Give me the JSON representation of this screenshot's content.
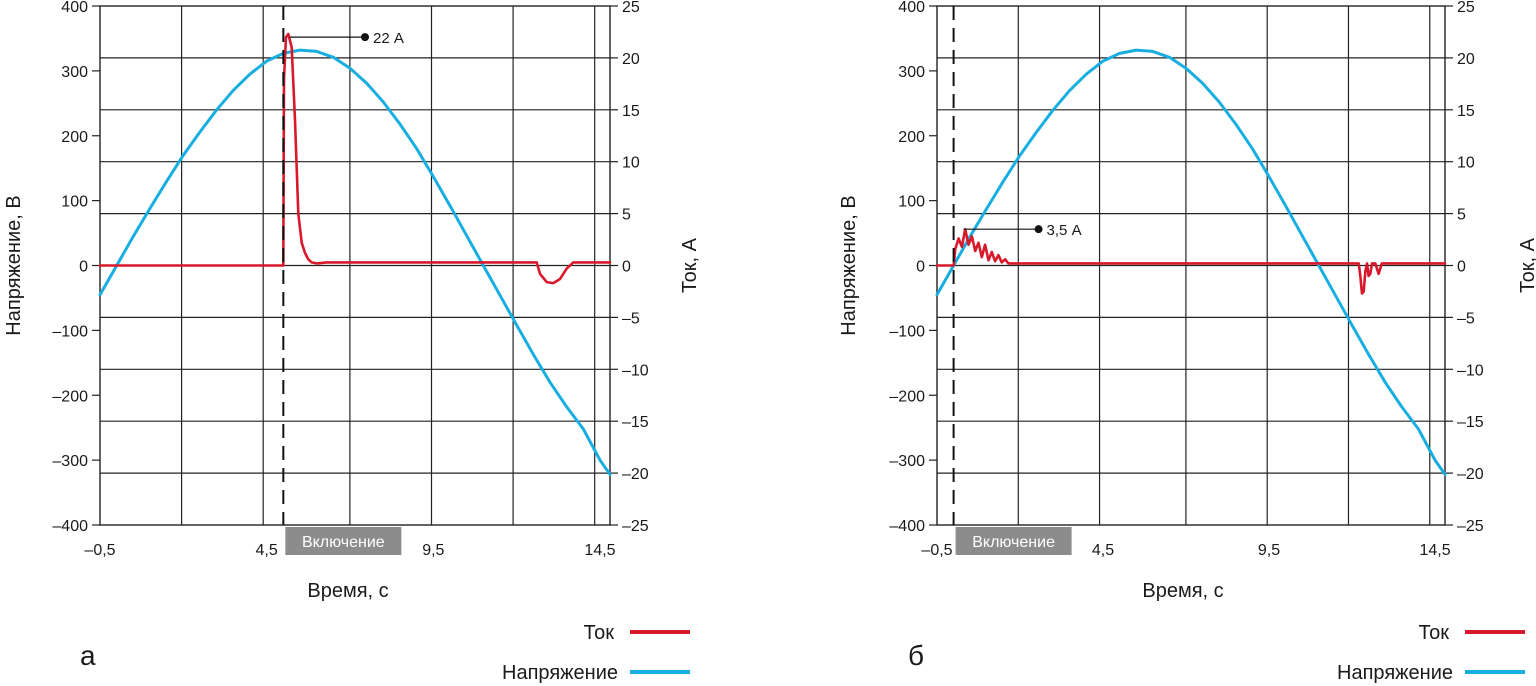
{
  "colors": {
    "current": "#d7192b",
    "voltage": "#19aee0",
    "grid": "#222222",
    "on_box": "#8c8c8c"
  },
  "chart_data": [
    {
      "type": "line",
      "panel_label": "а",
      "xlabel": "Время, с",
      "ylabel_left": "Напряжение, В",
      "ylabel_right": "Ток, А",
      "xlim": [
        -0.5,
        14.8
      ],
      "ylim_left": [
        -400,
        400
      ],
      "ylim_right": [
        -25,
        25
      ],
      "x_ticks": [
        "–0,5",
        "4,5",
        "9,5",
        "14,5"
      ],
      "y_left_ticks": [
        "400",
        "300",
        "200",
        "100",
        "0",
        "–100",
        "–200",
        "–300",
        "–400"
      ],
      "y_right_ticks": [
        "25",
        "20",
        "15",
        "10",
        "5",
        "0",
        "–5",
        "–10",
        "–15",
        "–20",
        "–25"
      ],
      "grid": true,
      "switch_on_x": 5.0,
      "switch_on_label": "Включение",
      "annotation": {
        "text": "22 А",
        "x": 5.2,
        "y": 22
      },
      "series": [
        {
          "name": "Напряжение",
          "axis": "left",
          "x": [
            -0.5,
            0.0,
            0.5,
            1.0,
            1.5,
            2.0,
            2.5,
            3.0,
            3.5,
            4.0,
            4.5,
            5.0,
            5.5,
            6.0,
            6.5,
            7.0,
            7.5,
            8.0,
            8.5,
            9.0,
            9.5,
            10.0,
            10.5,
            11.0,
            11.5,
            12.0,
            12.5,
            13.0,
            13.5,
            14.0,
            14.5,
            14.8
          ],
          "y": [
            -45,
            0,
            45,
            88,
            130,
            170,
            206,
            240,
            270,
            295,
            315,
            327,
            332,
            330,
            321,
            304,
            281,
            252,
            218,
            180,
            137,
            92,
            46,
            0,
            -46,
            -92,
            -137,
            -180,
            -218,
            -252,
            -300,
            -322
          ]
        },
        {
          "name": "Ток",
          "axis": "right",
          "x": [
            -0.5,
            5.0,
            5.02,
            5.08,
            5.15,
            5.25,
            5.35,
            5.45,
            5.55,
            5.65,
            5.75,
            5.85,
            6.0,
            6.3,
            7.0,
            9.0,
            12.0,
            12.6,
            12.7,
            12.9,
            13.1,
            13.3,
            13.5,
            13.7,
            14.0,
            14.8
          ],
          "y": [
            0,
            0,
            18,
            22,
            22.3,
            21,
            14,
            5,
            2.2,
            1.2,
            0.6,
            0.3,
            0.2,
            0.3,
            0.3,
            0.3,
            0.3,
            0.3,
            -0.8,
            -1.6,
            -1.7,
            -1.3,
            -0.3,
            0.3,
            0.3,
            0.3
          ]
        }
      ]
    },
    {
      "type": "line",
      "panel_label": "б",
      "xlabel": "Время, с",
      "ylabel_left": "Напряжение, В",
      "ylabel_right": "Ток, А",
      "xlim": [
        -0.5,
        14.8
      ],
      "ylim_left": [
        -400,
        400
      ],
      "ylim_right": [
        -25,
        25
      ],
      "x_ticks": [
        "–0,5",
        "4,5",
        "9,5",
        "14,5"
      ],
      "y_left_ticks": [
        "400",
        "300",
        "200",
        "100",
        "0",
        "–100",
        "–200",
        "–300",
        "–400"
      ],
      "y_right_ticks": [
        "25",
        "20",
        "15",
        "10",
        "5",
        "0",
        "–5",
        "–10",
        "–15",
        "–20",
        "–25"
      ],
      "grid": true,
      "switch_on_x": 0.0,
      "switch_on_label": "Включение",
      "annotation": {
        "text": "3,5 А",
        "x": 0.3,
        "y": 3.5
      },
      "series": [
        {
          "name": "Напряжение",
          "axis": "left",
          "x": [
            -0.5,
            0.0,
            0.5,
            1.0,
            1.5,
            2.0,
            2.5,
            3.0,
            3.5,
            4.0,
            4.5,
            5.0,
            5.5,
            6.0,
            6.5,
            7.0,
            7.5,
            8.0,
            8.5,
            9.0,
            9.5,
            10.0,
            10.5,
            11.0,
            11.5,
            12.0,
            12.5,
            13.0,
            13.5,
            14.0,
            14.5,
            14.8
          ],
          "y": [
            -45,
            0,
            45,
            88,
            130,
            170,
            206,
            240,
            270,
            295,
            315,
            327,
            332,
            330,
            321,
            304,
            281,
            252,
            218,
            180,
            137,
            92,
            46,
            0,
            -46,
            -92,
            -137,
            -180,
            -218,
            -252,
            -300,
            -322
          ]
        },
        {
          "name": "Ток",
          "axis": "right",
          "x": [
            -0.5,
            0.0,
            0.05,
            0.15,
            0.25,
            0.35,
            0.45,
            0.55,
            0.65,
            0.75,
            0.85,
            0.95,
            1.05,
            1.15,
            1.25,
            1.35,
            1.45,
            1.55,
            1.65,
            1.8,
            2.0,
            4.0,
            8.0,
            12.2,
            12.25,
            12.3,
            12.35,
            12.4,
            12.45,
            12.5,
            12.55,
            12.6,
            12.7,
            12.8,
            12.9,
            13.0,
            14.8
          ],
          "y": [
            0,
            0,
            1.6,
            2.6,
            1.8,
            3.5,
            2.0,
            2.8,
            1.4,
            2.2,
            0.8,
            2.0,
            0.5,
            1.3,
            0.4,
            1.0,
            0.3,
            0.6,
            0.2,
            0.2,
            0.2,
            0.2,
            0.2,
            0.2,
            -1.0,
            -2.7,
            -2.5,
            -0.6,
            0.2,
            -1.0,
            -0.8,
            0.2,
            0.2,
            -0.8,
            0.2,
            0.2,
            0.2
          ]
        }
      ]
    }
  ],
  "legend": {
    "current_label": "Ток",
    "voltage_label": "Напряжение"
  }
}
